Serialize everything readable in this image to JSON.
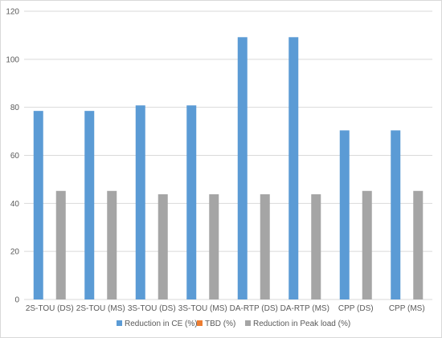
{
  "chart_data": {
    "type": "bar",
    "title": "",
    "xlabel": "",
    "ylabel": "",
    "ylim": [
      0,
      120
    ],
    "yticks": [
      0,
      20,
      40,
      60,
      80,
      100,
      120
    ],
    "grid": true,
    "legend_position": "bottom",
    "categories": [
      "2S-TOU (DS)",
      "2S-TOU (MS)",
      "3S-TOU (DS)",
      "3S-TOU (MS)",
      "DA-RTP (DS)",
      "DA-RTP (MS)",
      "CPP (DS)",
      "CPP (MS)"
    ],
    "series": [
      {
        "name": "Reduction in CE (%)",
        "color": "#5b9bd5",
        "values": [
          78.5,
          78.5,
          80.8,
          80.8,
          109.2,
          109.2,
          70.4,
          70.4
        ]
      },
      {
        "name": "TBD (%)",
        "color": "#ed7d31",
        "values": [
          0,
          0,
          0,
          0,
          0,
          0,
          0,
          0
        ]
      },
      {
        "name": "Reduction in Peak load (%)",
        "color": "#a5a5a5",
        "values": [
          45.2,
          45.2,
          43.8,
          43.8,
          43.8,
          43.8,
          45.2,
          45.2
        ]
      }
    ]
  }
}
